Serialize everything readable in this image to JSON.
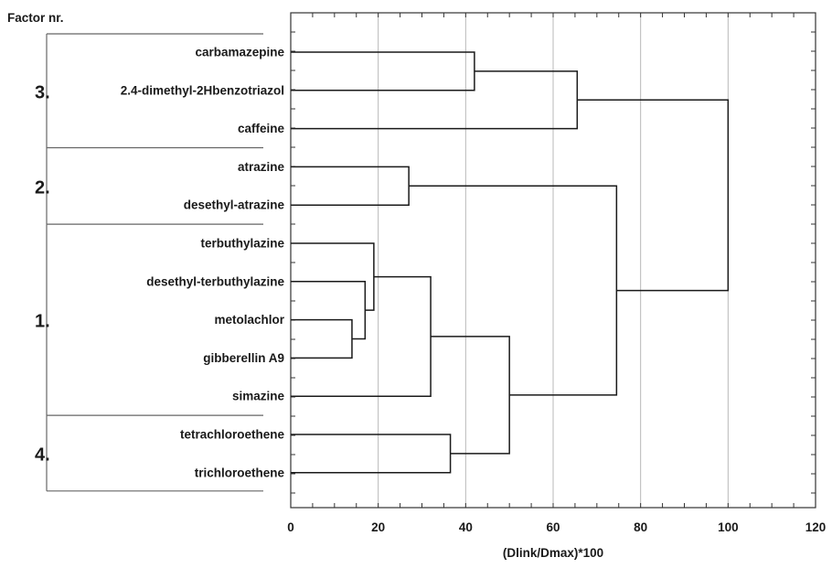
{
  "chart_data": {
    "type": "dendrogram",
    "title": "",
    "xlabel": "(Dlink/Dmax)*100",
    "xlim": [
      0,
      120
    ],
    "x_ticks": [
      0,
      20,
      40,
      60,
      80,
      100,
      120
    ],
    "grid": true,
    "grid_axis": "x",
    "leaves": [
      "carbamazepine",
      "2.4-dimethyl-2Hbenzotriazol",
      "caffeine",
      "atrazine",
      "desethyl-atrazine",
      "terbuthylazine",
      "desethyl-terbuthylazine",
      "metolachlor",
      "gibberellin A9",
      "simazine",
      "tetrachloroethene",
      "trichloroethene"
    ],
    "merges": [
      {
        "a": "carbamazepine",
        "b": "2.4-dimethyl-2Hbenzotriazol",
        "height": 42
      },
      {
        "a": "metolachlor",
        "b": "gibberellin A9",
        "height": 14
      },
      {
        "a": "desethyl-terbuthylazine",
        "b": "metolachlor+gibberellin A9",
        "height": 17
      },
      {
        "a": "terbuthylazine",
        "b": "desethyl-terbuthylazine+metolachlor+gibberellin A9",
        "height": 19
      },
      {
        "a": "atrazine",
        "b": "desethyl-atrazine",
        "height": 27
      },
      {
        "a": "terbuthylazine group",
        "b": "simazine",
        "height": 32
      },
      {
        "a": "tetrachloroethene",
        "b": "trichloroethene",
        "height": 36.5
      },
      {
        "a": "terbuthylazine+simazine group",
        "b": "tetrachloroethene+trichloroethene",
        "height": 50
      },
      {
        "a": "carbamazepine+2.4-dimethyl-2Hbenzotriazol",
        "b": "caffeine",
        "height": 65.5
      },
      {
        "a": "atrazine+desethyl-atrazine",
        "b": "group 1+4",
        "height": 74.5
      },
      {
        "a": "group 3",
        "b": "groups 2+1+4",
        "height": 100
      }
    ],
    "factors": {
      "title": "Factor nr.",
      "groups": [
        {
          "label": "3.",
          "leaves": [
            "carbamazepine",
            "2.4-dimethyl-2Hbenzotriazol",
            "caffeine"
          ]
        },
        {
          "label": "2.",
          "leaves": [
            "atrazine",
            "desethyl-atrazine"
          ]
        },
        {
          "label": "1.",
          "leaves": [
            "terbuthylazine",
            "desethyl-terbuthylazine",
            "metolachlor",
            "gibberellin A9",
            "simazine"
          ]
        },
        {
          "label": "4.",
          "leaves": [
            "tetrachloroethene",
            "trichloroethene"
          ]
        }
      ]
    }
  }
}
